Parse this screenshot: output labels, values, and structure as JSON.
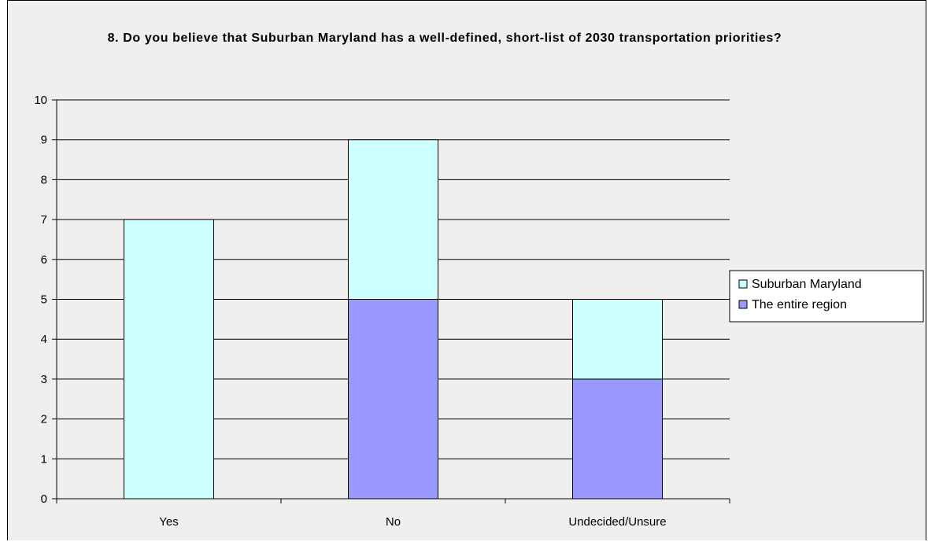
{
  "chart_data": {
    "type": "bar",
    "stacked": true,
    "title": "8. Do you believe that Suburban Maryland has a well-defined, short-list of 2030 transportation priorities?",
    "categories": [
      "Yes",
      "No",
      "Undecided/Unsure"
    ],
    "series": [
      {
        "name": "The entire region",
        "values": [
          0,
          5,
          3
        ],
        "color": "#9999ff"
      },
      {
        "name": "Suburban Maryland",
        "values": [
          7,
          4,
          2
        ],
        "color": "#ccffff"
      }
    ],
    "legend_order": [
      1,
      0
    ],
    "ylim": [
      0,
      10
    ],
    "yticks": [
      "0",
      "1",
      "2",
      "3",
      "4",
      "5",
      "6",
      "7",
      "8",
      "9",
      "10"
    ],
    "grid": true,
    "legend": "right",
    "xlabel": "",
    "ylabel": ""
  }
}
